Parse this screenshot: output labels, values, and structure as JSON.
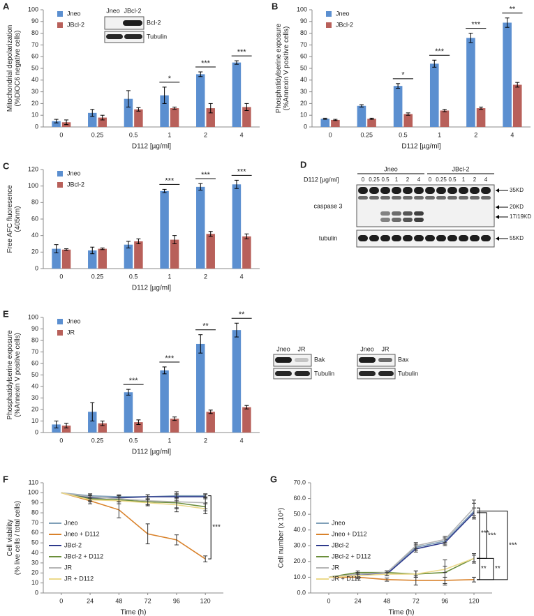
{
  "chart_data": [
    {
      "type": "bar",
      "label": "A",
      "ylabel": [
        "Mitochondrial depolarization",
        "(%DiOC6 negative cells)"
      ],
      "xlabel": "D112 [µg/ml]",
      "categories": [
        "0",
        "0.25",
        "0.5",
        "1",
        "2",
        "4"
      ],
      "ylim": [
        0,
        100
      ],
      "yticks": [
        0,
        10,
        20,
        30,
        40,
        50,
        60,
        70,
        80,
        90,
        100
      ],
      "series": [
        {
          "name": "Jneo",
          "color": "#5b8fd0",
          "values": [
            5,
            12,
            24,
            27,
            45,
            55
          ],
          "errors": [
            1.5,
            3,
            7,
            7,
            2,
            1.5
          ]
        },
        {
          "name": "JBcl-2",
          "color": "#b8605a",
          "values": [
            4,
            8,
            15,
            16,
            16,
            17
          ],
          "errors": [
            2,
            2,
            1.5,
            1,
            4,
            3
          ]
        }
      ],
      "significance": [
        null,
        null,
        null,
        "*",
        "***",
        "***"
      ]
    },
    {
      "type": "bar",
      "label": "B",
      "ylabel": [
        "Phosphatidylserine exposure",
        "(%Annexin V positive cells)"
      ],
      "xlabel": "D112 [µg/ml]",
      "categories": [
        "0",
        "0.25",
        "0.5",
        "1",
        "2",
        "4"
      ],
      "ylim": [
        0,
        100
      ],
      "yticks": [
        0,
        10,
        20,
        30,
        40,
        50,
        60,
        70,
        80,
        90,
        100
      ],
      "series": [
        {
          "name": "Jneo",
          "color": "#5b8fd0",
          "values": [
            7,
            18,
            35,
            54,
            76,
            89
          ],
          "errors": [
            0.5,
            1,
            2,
            3,
            4,
            4
          ]
        },
        {
          "name": "JBcl-2",
          "color": "#b8605a",
          "values": [
            6,
            7,
            11,
            14,
            16,
            36
          ],
          "errors": [
            0.5,
            0.5,
            1,
            1,
            1,
            2
          ]
        }
      ],
      "significance": [
        null,
        null,
        "*",
        "***",
        "***",
        "**"
      ]
    },
    {
      "type": "bar",
      "label": "C",
      "ylabel": [
        "Free AFC fluoresence",
        "(405nm)"
      ],
      "xlabel": "D112 [µg/ml]",
      "categories": [
        "0",
        "0.25",
        "0.5",
        "1",
        "2",
        "4"
      ],
      "ylim": [
        0,
        120
      ],
      "yticks": [
        0,
        20,
        40,
        60,
        80,
        100,
        120
      ],
      "series": [
        {
          "name": "Jneo",
          "color": "#5b8fd0",
          "values": [
            24,
            22,
            29,
            94,
            99,
            102
          ],
          "errors": [
            5,
            4,
            4,
            2,
            4,
            5
          ]
        },
        {
          "name": "JBcl-2",
          "color": "#b8605a",
          "values": [
            23,
            24,
            33,
            35,
            42,
            39
          ],
          "errors": [
            1,
            1,
            3,
            5,
            3,
            3
          ]
        }
      ],
      "significance": [
        null,
        null,
        null,
        "***",
        "***",
        "***"
      ]
    },
    {
      "type": "bar",
      "label": "E",
      "ylabel": [
        "Phosphatidylserine exposure",
        "(%Annexin V positive cells)"
      ],
      "xlabel": "D112 [µg/ml]",
      "categories": [
        "0",
        "0.25",
        "0.5",
        "1",
        "2",
        "4"
      ],
      "ylim": [
        0,
        100
      ],
      "yticks": [
        0,
        10,
        20,
        30,
        40,
        50,
        60,
        70,
        80,
        90,
        100
      ],
      "series": [
        {
          "name": "Jneo",
          "color": "#5b8fd0",
          "values": [
            7,
            18,
            35,
            54,
            77,
            89
          ],
          "errors": [
            3,
            8,
            2.5,
            3,
            8,
            6
          ]
        },
        {
          "name": "JR",
          "color": "#b8605a",
          "values": [
            6,
            8,
            9,
            12,
            18,
            22
          ],
          "errors": [
            2,
            2,
            2,
            1.5,
            1.5,
            1.5
          ]
        }
      ],
      "significance": [
        null,
        null,
        "***",
        "***",
        "**",
        "**"
      ]
    },
    {
      "type": "line",
      "label": "F",
      "ylabel": [
        "Cell viability",
        "(% live cells / total cells)"
      ],
      "xlabel": "Time (h)",
      "x": [
        0,
        24,
        48,
        72,
        96,
        120
      ],
      "xlim": [
        -15,
        135
      ],
      "xticks": [
        0,
        24,
        48,
        72,
        96,
        120
      ],
      "ylim": [
        0,
        110
      ],
      "yticks": [
        0,
        10,
        20,
        30,
        40,
        50,
        60,
        70,
        80,
        90,
        100,
        110
      ],
      "series": [
        {
          "name": "Jneo",
          "color": "#7f9fb8",
          "values": [
            100,
            97,
            96,
            96,
            97,
            97
          ],
          "errors": [
            0,
            2,
            2,
            2,
            2,
            2
          ]
        },
        {
          "name": "Jneo + D112",
          "color": "#d9822b",
          "values": [
            100,
            92,
            83,
            59,
            53,
            34
          ],
          "errors": [
            0,
            3,
            8,
            10,
            5,
            3
          ]
        },
        {
          "name": "JBcl-2",
          "color": "#2e3a8c",
          "values": [
            100,
            95,
            95,
            96,
            96,
            96
          ],
          "errors": [
            0,
            2,
            2,
            2,
            2,
            2
          ]
        },
        {
          "name": "JBcl-2 + D112",
          "color": "#6b8e3a",
          "values": [
            100,
            94,
            93,
            91,
            90,
            86
          ],
          "errors": [
            0,
            2,
            2,
            3,
            5,
            4
          ]
        },
        {
          "name": "JR",
          "color": "#b5b5b5",
          "values": [
            100,
            96,
            94,
            92,
            91,
            90
          ],
          "errors": [
            0,
            2,
            3,
            4,
            10,
            6
          ]
        },
        {
          "name": "JR + D112",
          "color": "#ecd98a",
          "values": [
            100,
            93,
            92,
            90,
            88,
            84
          ],
          "errors": [
            0,
            2,
            3,
            3,
            4,
            5
          ]
        }
      ],
      "annotations": [
        "***"
      ]
    },
    {
      "type": "line",
      "label": "G",
      "ylabel": [
        "Cell number (x 10⁴)"
      ],
      "xlabel": "Time (h)",
      "x": [
        0,
        24,
        48,
        72,
        96,
        120
      ],
      "xlim": [
        -15,
        135
      ],
      "xticks": [
        0,
        24,
        48,
        72,
        96,
        120
      ],
      "ylim": [
        0,
        70
      ],
      "yticks": [
        {
          "value": 0,
          "label": "0.0"
        },
        {
          "value": 10,
          "label": "10.0"
        },
        {
          "value": 20,
          "label": "20.0"
        },
        {
          "value": 30,
          "label": "30.0"
        },
        {
          "value": 40,
          "label": "40.0"
        },
        {
          "value": 50,
          "label": "50.0"
        },
        {
          "value": 60,
          "label": "60.0"
        },
        {
          "value": 70,
          "label": "70.0"
        }
      ],
      "series": [
        {
          "name": "Jneo",
          "color": "#7f9fb8",
          "values": [
            10,
            12,
            13,
            29,
            33,
            52
          ],
          "errors": [
            0,
            1,
            1,
            2,
            2,
            5
          ]
        },
        {
          "name": "Jneo + D112",
          "color": "#d9822b",
          "values": [
            10,
            10,
            8.5,
            8,
            8,
            8.5
          ],
          "errors": [
            0,
            1,
            1,
            3,
            2,
            1.5
          ]
        },
        {
          "name": "JBcl-2",
          "color": "#2e3a8c",
          "values": [
            10,
            12,
            12,
            28,
            32,
            51
          ],
          "errors": [
            0,
            1,
            1,
            2,
            2,
            3
          ]
        },
        {
          "name": "JBcl-2 + D112",
          "color": "#6b8e3a",
          "values": [
            10,
            13,
            13,
            12,
            13,
            22
          ],
          "errors": [
            0,
            1,
            1,
            2,
            8,
            3
          ]
        },
        {
          "name": "JR",
          "color": "#b5b5b5",
          "values": [
            10,
            12,
            13,
            30,
            34,
            54
          ],
          "errors": [
            0,
            1,
            1,
            2,
            2,
            5
          ]
        },
        {
          "name": "JR + D112",
          "color": "#ecd98a",
          "values": [
            10,
            11,
            12,
            12,
            15,
            22
          ],
          "errors": [
            0,
            1,
            1,
            2,
            2,
            2
          ]
        }
      ],
      "annotations": [
        "***",
        "***",
        "***",
        "**",
        "**"
      ]
    }
  ],
  "blot_A": {
    "lanes": [
      "Jneo",
      "JBcl-2"
    ],
    "rows": [
      "Bcl-2",
      "Tubulin"
    ]
  },
  "panel_D": {
    "label": "D",
    "groups": [
      "Jneo",
      "JBcl-2"
    ],
    "treatment": "D112 [µg/ml]",
    "lanes": [
      "0",
      "0.25",
      "0.5",
      "1",
      "2",
      "4",
      "0",
      "0.25",
      "0.5",
      "1",
      "2",
      "4"
    ],
    "rows": [
      "caspase 3",
      "tubulin"
    ],
    "markers": [
      "35KD",
      "20KD",
      "17/19KD",
      "55KD"
    ]
  },
  "blot_E": [
    {
      "lanes": [
        "Jneo",
        "JR"
      ],
      "rows": [
        "Bak",
        "Tubulin"
      ]
    },
    {
      "lanes": [
        "Jneo",
        "JR"
      ],
      "rows": [
        "Bax",
        "Tubulin"
      ]
    }
  ]
}
